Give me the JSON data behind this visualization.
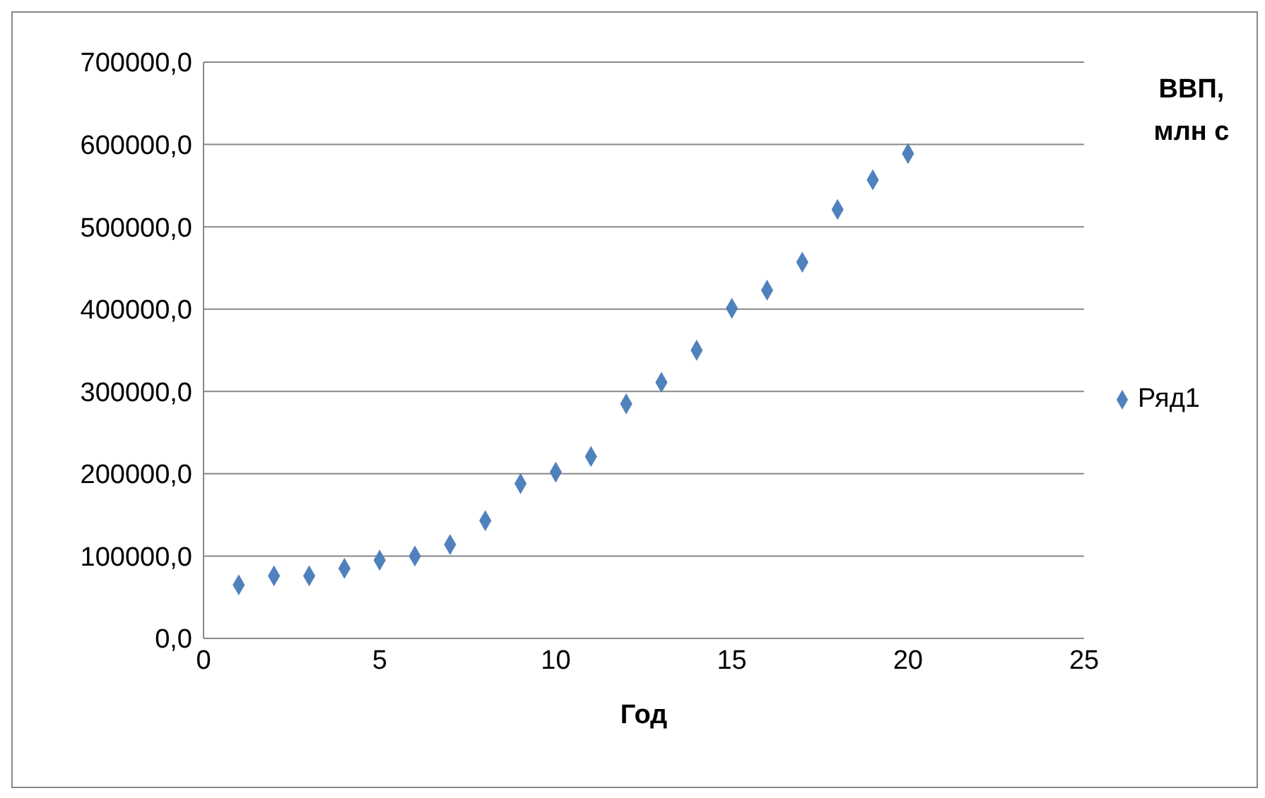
{
  "chart_data": {
    "type": "scatter",
    "ylabel": "ВВП, млн с",
    "xlabel": "Год",
    "x": [
      1,
      2,
      3,
      4,
      5,
      6,
      7,
      8,
      9,
      10,
      11,
      12,
      13,
      14,
      15,
      16,
      17,
      18,
      19,
      20
    ],
    "series": [
      {
        "name": "Ряд1",
        "color": "#4f81bd",
        "values": [
          65000,
          76000,
          76000,
          85000,
          95000,
          100000,
          114000,
          143000,
          188000,
          202000,
          221000,
          285000,
          311000,
          350000,
          401000,
          423000,
          457000,
          521000,
          557000,
          589000
        ]
      }
    ],
    "xlim": [
      0,
      25
    ],
    "xticks": [
      0,
      5,
      10,
      15,
      20,
      25
    ],
    "ylim": [
      0,
      700000
    ],
    "yticks": [
      {
        "value": 0,
        "label": "0,0"
      },
      {
        "value": 100000,
        "label": "100000,0"
      },
      {
        "value": 200000,
        "label": "200000,0"
      },
      {
        "value": 300000,
        "label": "300000,0"
      },
      {
        "value": 400000,
        "label": "400000,0"
      },
      {
        "value": 500000,
        "label": "500000,0"
      },
      {
        "value": 600000,
        "label": "600000,0"
      },
      {
        "value": 700000,
        "label": "700000,0"
      }
    ],
    "grid": "y",
    "legend": "right",
    "marker": "diamond"
  }
}
